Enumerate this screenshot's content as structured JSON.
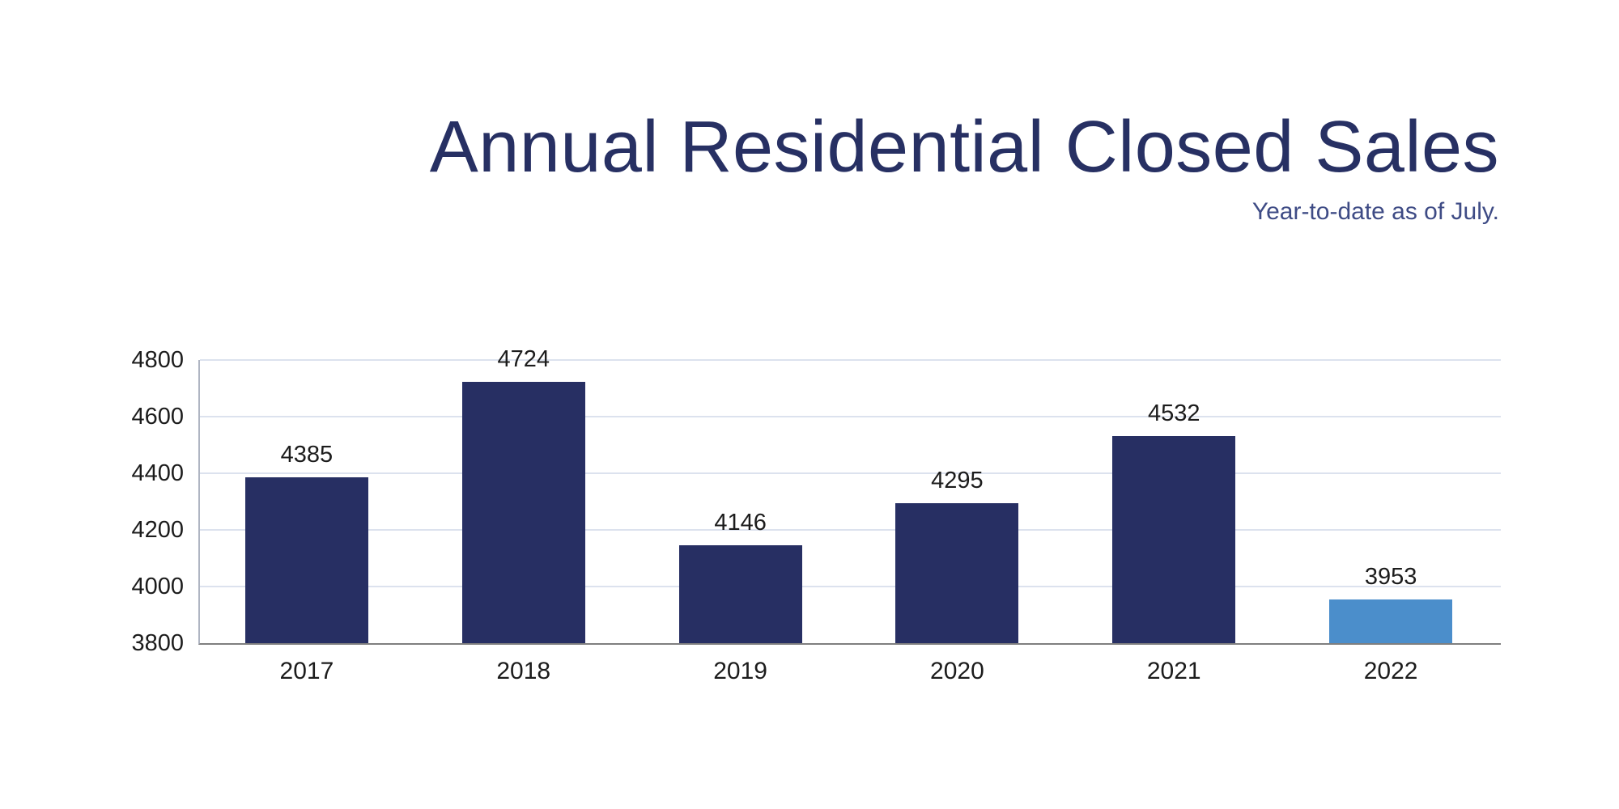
{
  "header": {
    "title": "Annual Residential Closed Sales",
    "subtitle": "Year-to-date as of July."
  },
  "chart_data": {
    "type": "bar",
    "title": "Annual Residential Closed Sales",
    "subtitle": "Year-to-date as of July.",
    "categories": [
      "2017",
      "2018",
      "2019",
      "2020",
      "2021",
      "2022"
    ],
    "values": [
      4385,
      4724,
      4146,
      4295,
      4532,
      3953
    ],
    "data_labels": [
      "4385",
      "4724",
      "4146",
      "4295",
      "4532",
      "3953"
    ],
    "xlabel": "",
    "ylabel": "",
    "ylim": [
      3800,
      4800
    ],
    "yticks": [
      3800,
      4000,
      4200,
      4400,
      4600,
      4800
    ],
    "grid": "horizontal",
    "legend": "none",
    "bar_colors": [
      "#272F63",
      "#272F63",
      "#272F63",
      "#272F63",
      "#272F63",
      "#4B8ECB"
    ],
    "colors": {
      "title": "#273063",
      "subtitle": "#3E4B85",
      "label_text": "#1C1C1C",
      "gridline": "#DCE2EE",
      "baseline": "#7F7F7F",
      "axis_line": "#AFB5C2",
      "background": "#FFFFFF"
    }
  }
}
